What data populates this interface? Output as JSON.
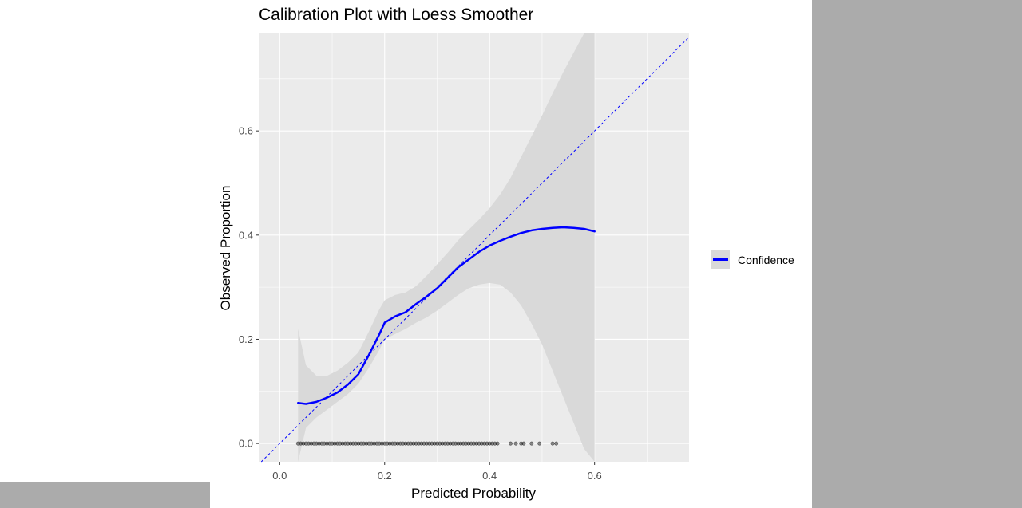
{
  "chart_data": {
    "type": "line",
    "title": "Calibration Plot with Loess Smoother",
    "xlabel": "Predicted Probability",
    "ylabel": "Observed Proportion",
    "xlim": [
      -0.04,
      0.78
    ],
    "ylim": [
      -0.035,
      0.787
    ],
    "x_ticks": [
      0.0,
      0.2,
      0.4,
      0.6
    ],
    "y_ticks": [
      0.0,
      0.2,
      0.4,
      0.6
    ],
    "x_tick_labels": [
      "0.0",
      "0.2",
      "0.4",
      "0.6"
    ],
    "y_tick_labels": [
      "0.0",
      "0.2",
      "0.4",
      "0.6"
    ],
    "grid": true,
    "legend": {
      "position": "right",
      "entries": [
        "Confidence"
      ]
    },
    "colors": {
      "panel": "#ebebeb",
      "grid_major": "#ffffff",
      "smoother": "#0000ff",
      "ribbon": "#d9d9d9",
      "reference": "#0000ff",
      "points": "#000000"
    },
    "reference_line": {
      "slope": 1,
      "intercept": 0,
      "style": "dashed"
    },
    "series": [
      {
        "name": "Confidence",
        "kind": "loess",
        "x": [
          0.035,
          0.05,
          0.07,
          0.09,
          0.11,
          0.13,
          0.15,
          0.17,
          0.19,
          0.2,
          0.22,
          0.24,
          0.26,
          0.28,
          0.3,
          0.32,
          0.34,
          0.36,
          0.38,
          0.4,
          0.42,
          0.44,
          0.46,
          0.48,
          0.5,
          0.52,
          0.54,
          0.56,
          0.58,
          0.6
        ],
        "y": [
          0.078,
          0.076,
          0.08,
          0.088,
          0.098,
          0.113,
          0.133,
          0.17,
          0.21,
          0.232,
          0.244,
          0.252,
          0.268,
          0.282,
          0.298,
          0.318,
          0.338,
          0.353,
          0.368,
          0.38,
          0.389,
          0.397,
          0.404,
          0.409,
          0.412,
          0.414,
          0.415,
          0.414,
          0.412,
          0.407
        ],
        "ci_lower": [
          -0.035,
          0.03,
          0.05,
          0.065,
          0.08,
          0.095,
          0.115,
          0.145,
          0.18,
          0.2,
          0.21,
          0.22,
          0.232,
          0.242,
          0.255,
          0.27,
          0.285,
          0.298,
          0.305,
          0.308,
          0.305,
          0.29,
          0.265,
          0.23,
          0.19,
          0.14,
          0.09,
          0.04,
          -0.01,
          -0.035
        ],
        "ci_upper": [
          0.22,
          0.15,
          0.13,
          0.13,
          0.14,
          0.155,
          0.175,
          0.215,
          0.258,
          0.275,
          0.285,
          0.29,
          0.302,
          0.322,
          0.344,
          0.366,
          0.39,
          0.41,
          0.43,
          0.452,
          0.478,
          0.51,
          0.55,
          0.59,
          0.63,
          0.672,
          0.712,
          0.75,
          0.787,
          0.787
        ]
      }
    ],
    "rug_points": [
      0.035,
      0.04,
      0.045,
      0.05,
      0.055,
      0.06,
      0.065,
      0.07,
      0.075,
      0.08,
      0.085,
      0.09,
      0.095,
      0.1,
      0.105,
      0.11,
      0.115,
      0.12,
      0.125,
      0.13,
      0.135,
      0.14,
      0.145,
      0.15,
      0.155,
      0.16,
      0.165,
      0.17,
      0.175,
      0.18,
      0.185,
      0.19,
      0.195,
      0.2,
      0.205,
      0.21,
      0.215,
      0.22,
      0.225,
      0.23,
      0.235,
      0.24,
      0.245,
      0.25,
      0.255,
      0.26,
      0.265,
      0.27,
      0.275,
      0.28,
      0.285,
      0.29,
      0.295,
      0.3,
      0.305,
      0.31,
      0.315,
      0.32,
      0.325,
      0.33,
      0.335,
      0.34,
      0.345,
      0.35,
      0.355,
      0.36,
      0.365,
      0.37,
      0.375,
      0.38,
      0.385,
      0.39,
      0.395,
      0.4,
      0.405,
      0.41,
      0.415,
      0.44,
      0.45,
      0.46,
      0.465,
      0.48,
      0.495,
      0.52,
      0.527
    ]
  }
}
